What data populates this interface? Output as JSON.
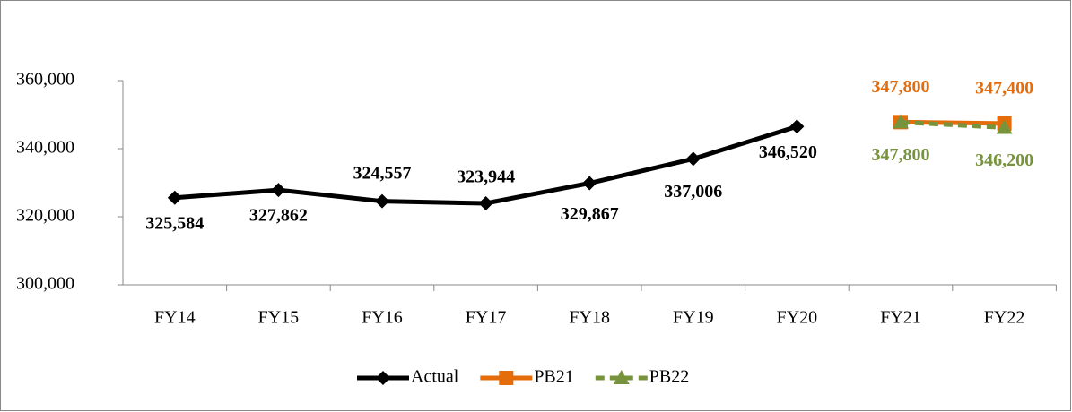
{
  "chart_data": {
    "type": "line",
    "categories": [
      "FY14",
      "FY15",
      "FY16",
      "FY17",
      "FY18",
      "FY19",
      "FY20",
      "FY21",
      "FY22"
    ],
    "series": [
      {
        "name": "Actual",
        "color": "#000000",
        "marker": "diamond",
        "dashed": false,
        "values": [
          325584,
          327862,
          324557,
          323944,
          329867,
          337006,
          346520,
          null,
          null
        ],
        "value_labels": [
          "325,584",
          "327,862",
          "324,557",
          "323,944",
          "329,867",
          "337,006",
          "346,520",
          null,
          null
        ]
      },
      {
        "name": "PB21",
        "color": "#e46c0a",
        "marker": "square",
        "dashed": false,
        "values": [
          null,
          null,
          null,
          null,
          null,
          null,
          null,
          347800,
          347400
        ],
        "value_labels": [
          null,
          null,
          null,
          null,
          null,
          null,
          null,
          "347,800",
          "347,400"
        ]
      },
      {
        "name": "PB22",
        "color": "#77933c",
        "marker": "triangle",
        "dashed": true,
        "values": [
          null,
          null,
          null,
          null,
          null,
          null,
          null,
          347800,
          346200
        ],
        "value_labels": [
          null,
          null,
          null,
          null,
          null,
          null,
          null,
          "347,800",
          "346,200"
        ]
      }
    ],
    "ylim": [
      300000,
      360000
    ],
    "yticks": [
      {
        "value": 300000,
        "label": "300,000"
      },
      {
        "value": 320000,
        "label": "320,000"
      },
      {
        "value": 340000,
        "label": "340,000"
      },
      {
        "value": 360000,
        "label": "360,000"
      }
    ],
    "grid": false,
    "legend": "bottom"
  }
}
